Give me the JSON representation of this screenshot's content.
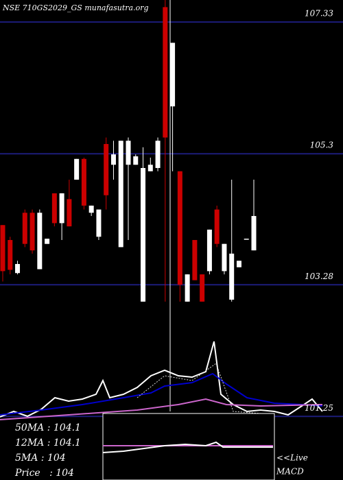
{
  "chart_data": {
    "type": "candlestick",
    "title": "NSE 710GS2029_GS munafasutra.org",
    "ylim": [
      100.27,
      107.67
    ],
    "yticks": [
      101.25,
      103.28,
      105.3,
      107.33
    ],
    "grid": true,
    "up_color": "#ffffff",
    "down_color": "#cc0000",
    "open": [
      104.2,
      103.97,
      103.46,
      104.39,
      104.39,
      103.52,
      103.91,
      104.69,
      104.23,
      104.6,
      104.9,
      105.22,
      104.39,
      104.02,
      105.45,
      105.13,
      103.86,
      105.13,
      105.13,
      103.02,
      105.03,
      105.08,
      107.56,
      106.03,
      105.03,
      103.02,
      103.97,
      103.44,
      103.49,
      104.44,
      103.49,
      103.05,
      103.55,
      103.99,
      103.81
    ],
    "high": [
      104.2,
      104.02,
      103.65,
      104.44,
      104.44,
      104.44,
      103.99,
      104.69,
      104.69,
      104.9,
      105.22,
      105.24,
      104.5,
      104.44,
      105.55,
      105.5,
      105.5,
      105.55,
      105.29,
      105.4,
      105.24,
      105.55,
      107.67,
      107.01,
      105.03,
      103.44,
      103.97,
      103.44,
      104.13,
      104.5,
      103.91,
      104.9,
      103.65,
      103.99,
      104.9
    ],
    "low": [
      103.33,
      103.44,
      103.44,
      103.86,
      103.76,
      103.52,
      103.91,
      104.18,
      103.97,
      104.18,
      104.9,
      104.44,
      104.34,
      103.97,
      104.44,
      104.9,
      103.86,
      103.97,
      105.13,
      103.02,
      105.03,
      105.03,
      103.02,
      105.03,
      103.02,
      103.02,
      103.35,
      103.02,
      103.44,
      103.86,
      103.44,
      103.02,
      103.55,
      103.99,
      103.81
    ],
    "close": [
      103.49,
      103.51,
      103.6,
      103.91,
      103.81,
      104.39,
      103.99,
      104.23,
      104.69,
      104.18,
      105.22,
      104.5,
      104.5,
      104.44,
      104.66,
      105.29,
      105.5,
      105.5,
      105.26,
      105.08,
      105.13,
      105.5,
      105.55,
      107.01,
      103.28,
      103.44,
      103.35,
      103.02,
      104.13,
      103.91,
      103.91,
      103.76,
      103.65,
      103.99,
      104.34
    ],
    "legend": [
      "50MA : 104.1",
      "12MA : 104.1",
      "5MA : 104",
      "Price   : 104"
    ],
    "live_label": "<<Live",
    "macd_label": "MACD"
  }
}
